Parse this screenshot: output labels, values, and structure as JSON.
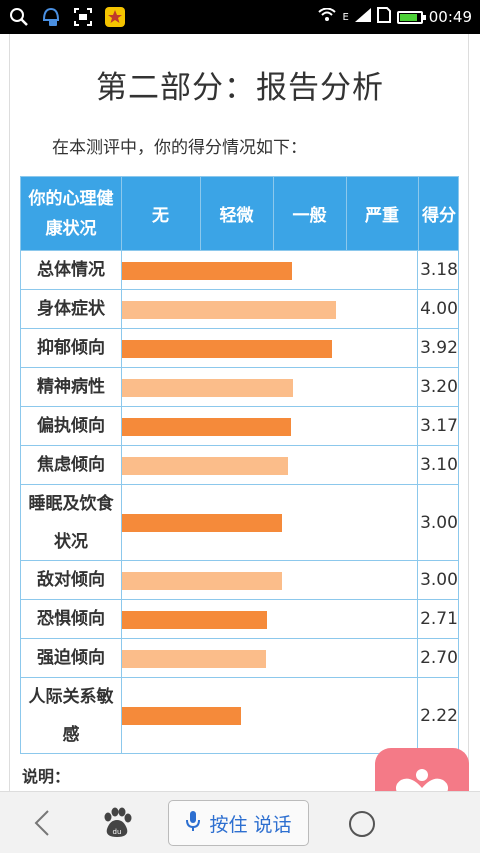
{
  "status_bar": {
    "time": "00:49",
    "network": "E",
    "battery_level": 0.8,
    "icons": [
      "search-icon",
      "notification-app-icon",
      "scan-icon",
      "favorite-app-icon",
      "wifi-icon",
      "signal-icon",
      "sim-icon",
      "battery-icon"
    ]
  },
  "page": {
    "title": "第二部分：报告分析",
    "intro": "在本测评中，你的得分情况如下：",
    "note": "说明："
  },
  "table": {
    "header": {
      "label_col": "你的心理健康状况",
      "levels": [
        "无",
        "轻微",
        "一般",
        "严重"
      ],
      "score_col": "得分"
    },
    "rows": [
      {
        "label": "总体情况",
        "score": "3.18",
        "value": 3.18,
        "style": "dark"
      },
      {
        "label": "身体症状",
        "score": "4.00",
        "value": 4.0,
        "style": "light"
      },
      {
        "label": "抑郁倾向",
        "score": "3.92",
        "value": 3.92,
        "style": "dark"
      },
      {
        "label": "精神病性",
        "score": "3.20",
        "value": 3.2,
        "style": "light"
      },
      {
        "label": "偏执倾向",
        "score": "3.17",
        "value": 3.17,
        "style": "dark"
      },
      {
        "label": "焦虑倾向",
        "score": "3.10",
        "value": 3.1,
        "style": "light"
      },
      {
        "label": "睡眠及饮食状况",
        "score": "3.00",
        "value": 3.0,
        "style": "dark"
      },
      {
        "label": "敌对倾向",
        "score": "3.00",
        "value": 3.0,
        "style": "light"
      },
      {
        "label": "恐惧倾向",
        "score": "2.71",
        "value": 2.71,
        "style": "dark"
      },
      {
        "label": "强迫倾向",
        "score": "2.70",
        "value": 2.7,
        "style": "light"
      },
      {
        "label": "人际关系敏感",
        "score": "2.22",
        "value": 2.22,
        "style": "dark"
      }
    ],
    "scale_max": 5,
    "colors": {
      "dark": "#f58a3a",
      "light": "#fbbd8a",
      "header": "#3ba4e6",
      "border": "#8cc8ec"
    }
  },
  "bottom_bar": {
    "voice_label": "按住 说话",
    "icons": [
      "back-icon",
      "baidu-paw-icon",
      "microphone-icon",
      "home-circle-icon"
    ]
  },
  "fab": {
    "icon": "heart-person-icon",
    "color": "#f47a87"
  }
}
